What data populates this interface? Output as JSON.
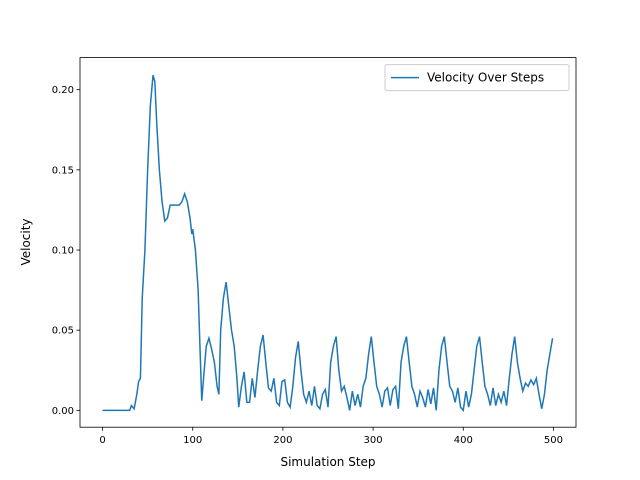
{
  "chart_data": {
    "type": "line",
    "xlabel": "Simulation Step",
    "ylabel": "Velocity",
    "x": [
      0,
      10,
      20,
      30,
      32,
      35,
      38,
      40,
      42,
      44,
      47,
      50,
      53,
      56,
      58,
      60,
      63,
      66,
      69,
      72,
      75,
      80,
      85,
      88,
      91,
      94,
      97,
      99,
      100,
      103,
      106,
      108,
      110,
      112,
      115,
      118,
      121,
      124,
      127,
      129,
      131,
      134,
      137,
      140,
      143,
      146,
      149,
      151,
      154,
      157,
      160,
      163,
      166,
      169,
      172,
      175,
      178,
      181,
      184,
      187,
      190,
      193,
      196,
      199,
      202,
      205,
      208,
      211,
      214,
      217,
      220,
      223,
      226,
      229,
      232,
      235,
      238,
      241,
      244,
      247,
      250,
      253,
      256,
      259,
      262,
      265,
      268,
      271,
      274,
      277,
      280,
      283,
      286,
      289,
      292,
      295,
      298,
      301,
      304,
      307,
      310,
      313,
      316,
      319,
      322,
      325,
      328,
      331,
      334,
      337,
      340,
      343,
      346,
      349,
      352,
      355,
      358,
      361,
      364,
      367,
      370,
      373,
      376,
      379,
      382,
      385,
      388,
      391,
      394,
      397,
      400,
      403,
      406,
      409,
      412,
      415,
      418,
      421,
      424,
      427,
      430,
      433,
      436,
      439,
      442,
      445,
      448,
      451,
      454,
      457,
      460,
      463,
      466,
      469,
      472,
      475,
      478,
      481,
      484,
      487,
      490,
      493,
      496,
      499
    ],
    "series": [
      {
        "name": "Velocity Over Steps",
        "color": "#1f77b4",
        "values": [
          0,
          0,
          0,
          0,
          0.003,
          0.001,
          0.01,
          0.018,
          0.02,
          0.07,
          0.1,
          0.15,
          0.19,
          0.209,
          0.205,
          0.18,
          0.15,
          0.13,
          0.118,
          0.12,
          0.128,
          0.128,
          0.128,
          0.13,
          0.135,
          0.13,
          0.12,
          0.11,
          0.113,
          0.1,
          0.075,
          0.04,
          0.006,
          0.02,
          0.04,
          0.045,
          0.038,
          0.03,
          0.015,
          0.01,
          0.05,
          0.07,
          0.08,
          0.065,
          0.05,
          0.04,
          0.02,
          0.002,
          0.015,
          0.024,
          0.005,
          0.005,
          0.02,
          0.008,
          0.025,
          0.04,
          0.047,
          0.03,
          0.014,
          0.012,
          0.02,
          0.005,
          0.003,
          0.018,
          0.019,
          0.005,
          0.002,
          0.015,
          0.033,
          0.043,
          0.025,
          0.01,
          0.005,
          0.012,
          0.003,
          0.015,
          0.003,
          0.001,
          0.01,
          0.013,
          0.002,
          0.03,
          0.04,
          0.046,
          0.025,
          0.012,
          0.015,
          0.008,
          0,
          0.012,
          0.003,
          0.01,
          0.002,
          0.015,
          0.02,
          0.035,
          0.046,
          0.03,
          0.015,
          0.01,
          0.002,
          0.012,
          0.014,
          0.003,
          0.013,
          0.015,
          0.001,
          0.03,
          0.04,
          0.046,
          0.03,
          0.015,
          0.01,
          0.002,
          0.012,
          0.008,
          0.002,
          0.013,
          0.004,
          0.014,
          0,
          0.025,
          0.04,
          0.046,
          0.03,
          0.015,
          0.012,
          0.005,
          0.014,
          0.002,
          0,
          0.012,
          0.002,
          0.01,
          0.025,
          0.04,
          0.046,
          0.03,
          0.015,
          0.01,
          0.003,
          0.014,
          0.003,
          0.01,
          0.005,
          0.012,
          0.003,
          0.02,
          0.035,
          0.046,
          0.03,
          0.02,
          0.012,
          0.017,
          0.015,
          0.019,
          0.016,
          0.02,
          0.01,
          0.001,
          0.01,
          0.025,
          0.035,
          0.045
        ]
      }
    ],
    "xlim": [
      -25,
      525
    ],
    "ylim": [
      -0.0105,
      0.22
    ],
    "xticks": [
      0,
      100,
      200,
      300,
      400,
      500
    ],
    "yticks": [
      {
        "value": 0,
        "label": "0.00"
      },
      {
        "value": 0.05,
        "label": "0.05"
      },
      {
        "value": 0.1,
        "label": "0.10"
      },
      {
        "value": 0.15,
        "label": "0.15"
      },
      {
        "value": 0.2,
        "label": "0.20"
      }
    ],
    "legend": "upper right"
  }
}
